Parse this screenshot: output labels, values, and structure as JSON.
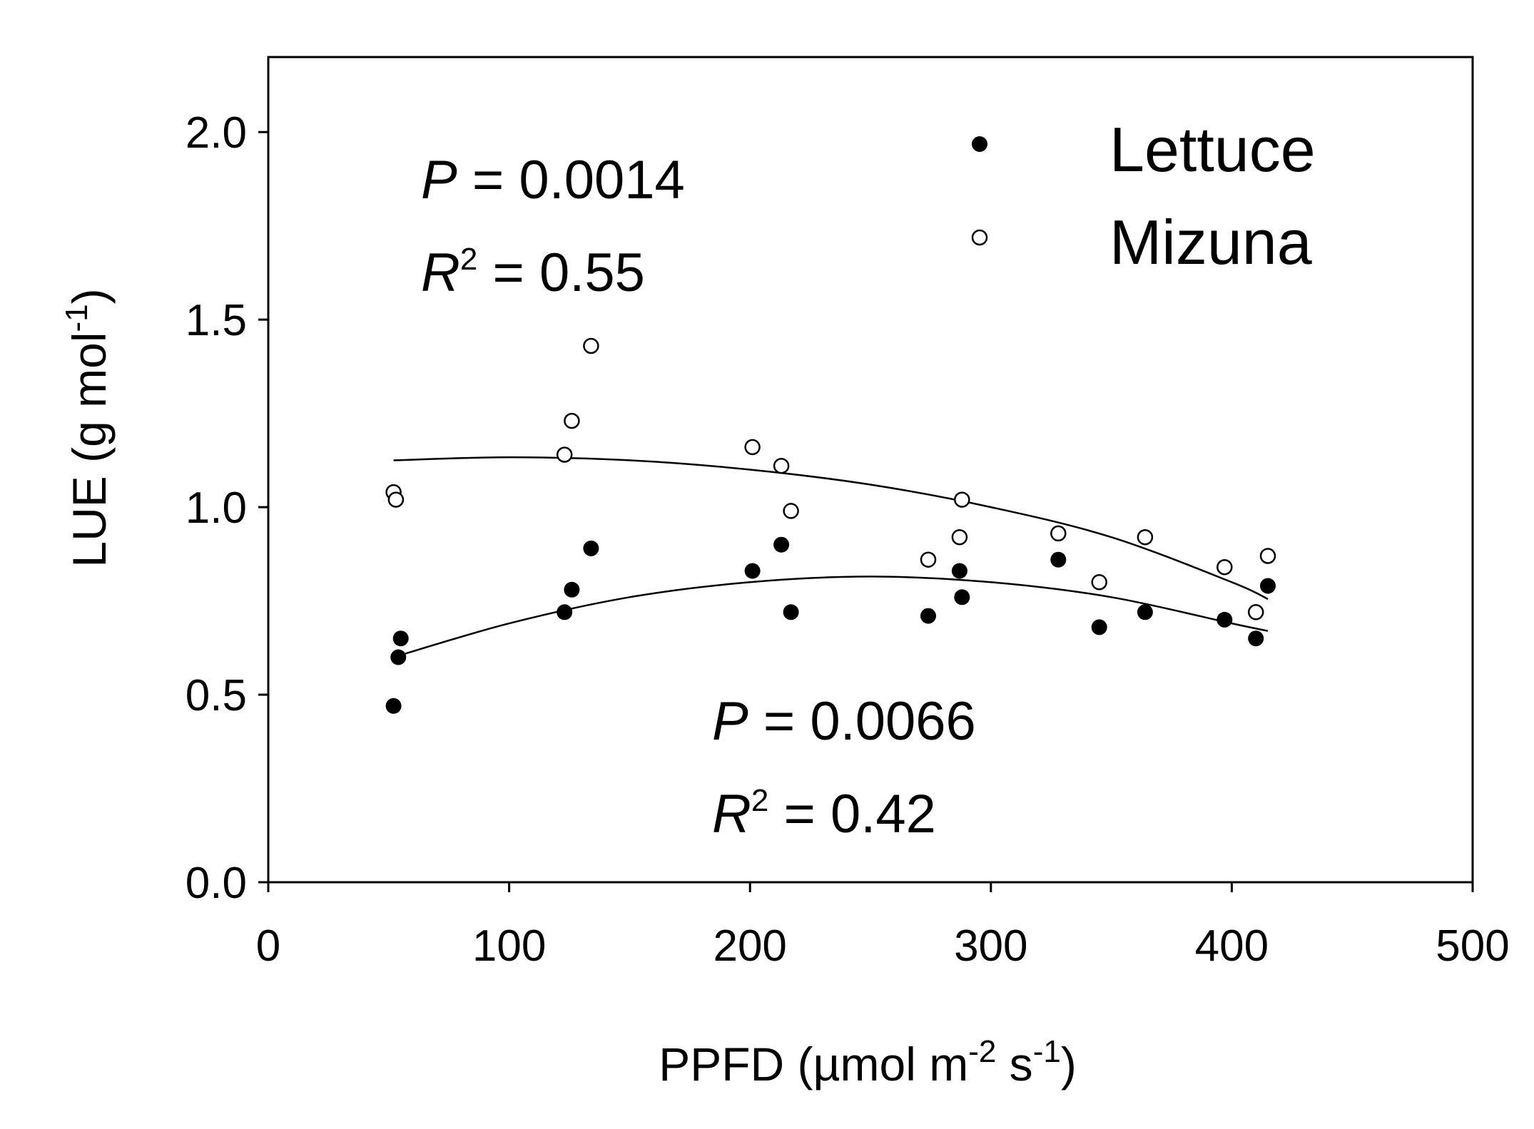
{
  "chart_data": {
    "type": "scatter",
    "title": "",
    "xlabel": {
      "main": "PPFD (µmol m",
      "exp1": "-2",
      "mid": " s",
      "exp2": "-1",
      "end": ")"
    },
    "ylabel": {
      "main": "LUE (g mol",
      "exp": "-1",
      "end": ")"
    },
    "xlim": [
      0,
      500
    ],
    "ylim": [
      0,
      2.2
    ],
    "xticks": [
      0,
      100,
      200,
      300,
      400,
      500
    ],
    "yticks": [
      0.0,
      0.5,
      1.0,
      1.5,
      2.0
    ],
    "xtick_labels": [
      "0",
      "100",
      "200",
      "300",
      "400",
      "500"
    ],
    "ytick_labels": [
      "0.0",
      "0.5",
      "1.0",
      "1.5",
      "2.0"
    ],
    "legend_position": "top-right",
    "series": [
      {
        "name": "Lettuce",
        "marker": "filled-circle",
        "points": [
          [
            52,
            0.47
          ],
          [
            54,
            0.6
          ],
          [
            55,
            0.65
          ],
          [
            123,
            0.72
          ],
          [
            126,
            0.78
          ],
          [
            134,
            0.89
          ],
          [
            201,
            0.83
          ],
          [
            213,
            0.9
          ],
          [
            217,
            0.72
          ],
          [
            274,
            0.71
          ],
          [
            287,
            0.83
          ],
          [
            288,
            0.76
          ],
          [
            328,
            0.86
          ],
          [
            345,
            0.68
          ],
          [
            364,
            0.72
          ],
          [
            397,
            0.7
          ],
          [
            410,
            0.65
          ],
          [
            415,
            0.79
          ]
        ],
        "fit": {
          "x_range": [
            52,
            415
          ],
          "points": [
            [
              52,
              0.6
            ],
            [
              100,
              0.69
            ],
            [
              150,
              0.76
            ],
            [
              200,
              0.8
            ],
            [
              250,
              0.815
            ],
            [
              300,
              0.8
            ],
            [
              350,
              0.76
            ],
            [
              400,
              0.69
            ],
            [
              415,
              0.67
            ]
          ]
        }
      },
      {
        "name": "Mizuna",
        "marker": "open-circle",
        "points": [
          [
            52,
            1.04
          ],
          [
            53,
            1.02
          ],
          [
            123,
            1.14
          ],
          [
            126,
            1.23
          ],
          [
            134,
            1.43
          ],
          [
            201,
            1.16
          ],
          [
            213,
            1.11
          ],
          [
            217,
            0.99
          ],
          [
            274,
            0.86
          ],
          [
            287,
            0.92
          ],
          [
            288,
            1.02
          ],
          [
            328,
            0.93
          ],
          [
            345,
            0.8
          ],
          [
            364,
            0.92
          ],
          [
            397,
            0.84
          ],
          [
            410,
            0.72
          ],
          [
            415,
            0.87
          ]
        ],
        "fit": {
          "x_range": [
            52,
            415
          ],
          "points": [
            [
              52,
              1.125
            ],
            [
              100,
              1.133
            ],
            [
              150,
              1.125
            ],
            [
              200,
              1.1
            ],
            [
              250,
              1.06
            ],
            [
              300,
              1.0
            ],
            [
              350,
              0.92
            ],
            [
              400,
              0.8
            ],
            [
              415,
              0.755
            ]
          ]
        }
      }
    ],
    "annotations": [
      {
        "name": "mizuna-stats",
        "p_label": "P",
        "p_value": " = 0.0014",
        "r_label": "R",
        "r_exp": "2",
        "r_value": " = 0.55"
      },
      {
        "name": "lettuce-stats",
        "p_label": "P",
        "p_value": " = 0.0066",
        "r_label": "R",
        "r_exp": "2",
        "r_value": " = 0.42"
      }
    ]
  }
}
